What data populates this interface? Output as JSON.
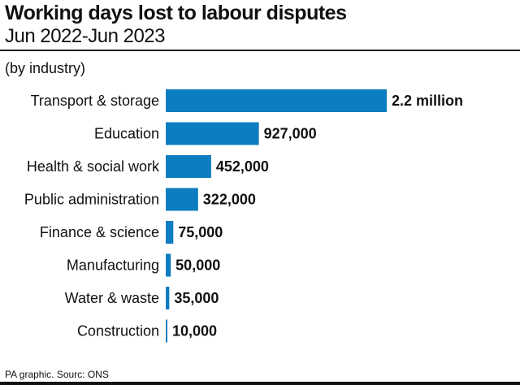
{
  "chart_data": {
    "type": "bar",
    "orientation": "horizontal",
    "title": "Working days lost to labour disputes",
    "subtitle": "Jun 2022-Jun 2023",
    "note": "(by industry)",
    "categories": [
      "Transport & storage",
      "Education",
      "Health & social work",
      "Public administration",
      "Finance & science",
      "Manufacturing",
      "Water & waste",
      "Construction"
    ],
    "values": [
      2200000,
      927000,
      452000,
      322000,
      75000,
      50000,
      35000,
      10000
    ],
    "value_labels": [
      "2.2 million",
      "927,000",
      "452,000",
      "322,000",
      "75,000",
      "50,000",
      "35,000",
      "10,000"
    ],
    "xlim": [
      0,
      2200000
    ],
    "grid": false,
    "bar_color": "#0b7dc0",
    "source": "PA graphic. Sourc: ONS"
  }
}
